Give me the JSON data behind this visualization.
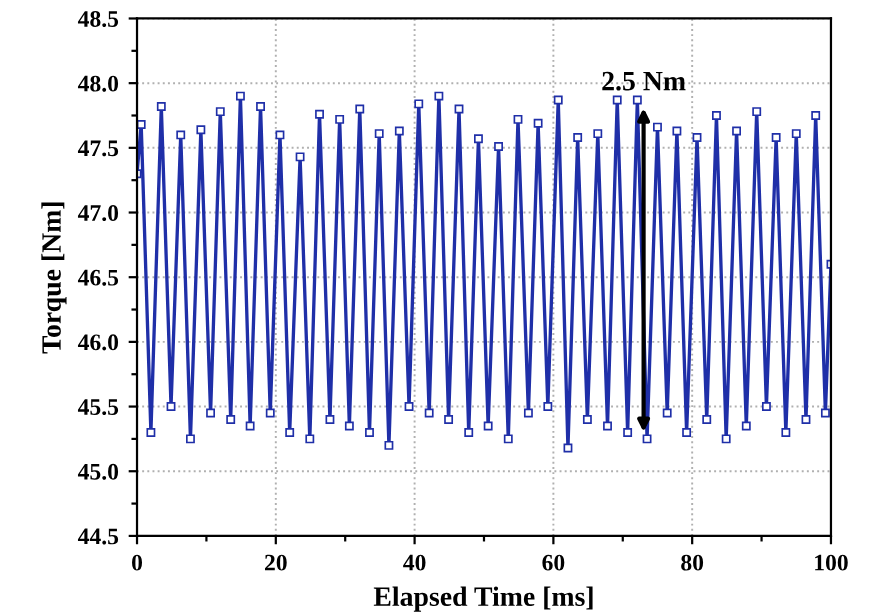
{
  "chart_data": {
    "type": "line",
    "xlabel": "Elapsed Time [ms]",
    "ylabel": "Torque [Nm]",
    "xlim": [
      0,
      100
    ],
    "ylim": [
      44.5,
      48.5
    ],
    "xticks": [
      0,
      {
        "value": 10,
        "label": null
      },
      20,
      {
        "value": 30,
        "label": null
      },
      40,
      {
        "value": 50,
        "label": null
      },
      60,
      {
        "value": 70,
        "label": null
      },
      80,
      {
        "value": 90,
        "label": null
      },
      100
    ],
    "yticks": [
      44.5,
      {
        "value": 44.75,
        "label": null
      },
      {
        "value": 45,
        "label": "45.0"
      },
      {
        "value": 45.25,
        "label": null
      },
      45.5,
      {
        "value": 45.75,
        "label": null
      },
      {
        "value": 46,
        "label": "46.0"
      },
      {
        "value": 46.25,
        "label": null
      },
      46.5,
      {
        "value": 46.75,
        "label": null
      },
      {
        "value": 47,
        "label": "47.0"
      },
      {
        "value": 47.25,
        "label": null
      },
      47.5,
      {
        "value": 47.75,
        "label": null
      },
      {
        "value": 48,
        "label": "48.0"
      },
      {
        "value": 48.25,
        "label": null
      },
      48.5
    ],
    "grid": true,
    "marker": "square",
    "line_style": "solid",
    "annotations": [
      {
        "text": "2.5 Nm",
        "x": 73,
        "y": 47.85
      }
    ],
    "series": [
      {
        "color": "#1f2fa8",
        "x": [
          0,
          0.6,
          2.0,
          3.5,
          4.9,
          6.3,
          7.7,
          9.2,
          10.6,
          12.0,
          13.5,
          14.9,
          16.3,
          17.8,
          19.2,
          20.6,
          22.0,
          23.5,
          24.9,
          26.3,
          27.8,
          29.2,
          30.6,
          32.1,
          33.5,
          34.9,
          36.3,
          37.8,
          39.2,
          40.6,
          42.1,
          43.5,
          44.9,
          46.4,
          47.8,
          49.2,
          50.6,
          52.1,
          53.5,
          54.9,
          56.4,
          57.8,
          59.2,
          60.7,
          62.1,
          63.5,
          64.9,
          66.4,
          67.8,
          69.2,
          70.7,
          72.1,
          73.5,
          75.0,
          76.4,
          77.8,
          79.2,
          80.7,
          82.1,
          83.5,
          84.9,
          86.4,
          87.8,
          89.3,
          90.7,
          92.1,
          93.5,
          95.0,
          96.4,
          97.8,
          99.2,
          100
        ],
        "values": [
          47.3,
          47.68,
          45.3,
          47.82,
          45.5,
          47.6,
          45.25,
          47.64,
          45.45,
          47.78,
          45.4,
          47.9,
          45.35,
          47.82,
          45.45,
          47.6,
          45.3,
          47.43,
          45.25,
          47.76,
          45.4,
          47.72,
          45.35,
          47.8,
          45.3,
          47.61,
          45.2,
          47.63,
          45.5,
          47.84,
          45.45,
          47.9,
          45.4,
          47.8,
          45.3,
          47.57,
          45.35,
          47.51,
          45.25,
          47.72,
          45.45,
          47.69,
          45.5,
          47.87,
          45.18,
          47.58,
          45.4,
          47.61,
          45.35,
          47.87,
          45.3,
          47.87,
          45.25,
          47.66,
          45.45,
          47.63,
          45.3,
          47.58,
          45.4,
          47.75,
          45.25,
          47.63,
          45.35,
          47.78,
          45.5,
          47.58,
          45.3,
          47.61,
          45.4,
          47.75,
          45.45,
          46.6
        ]
      }
    ]
  }
}
